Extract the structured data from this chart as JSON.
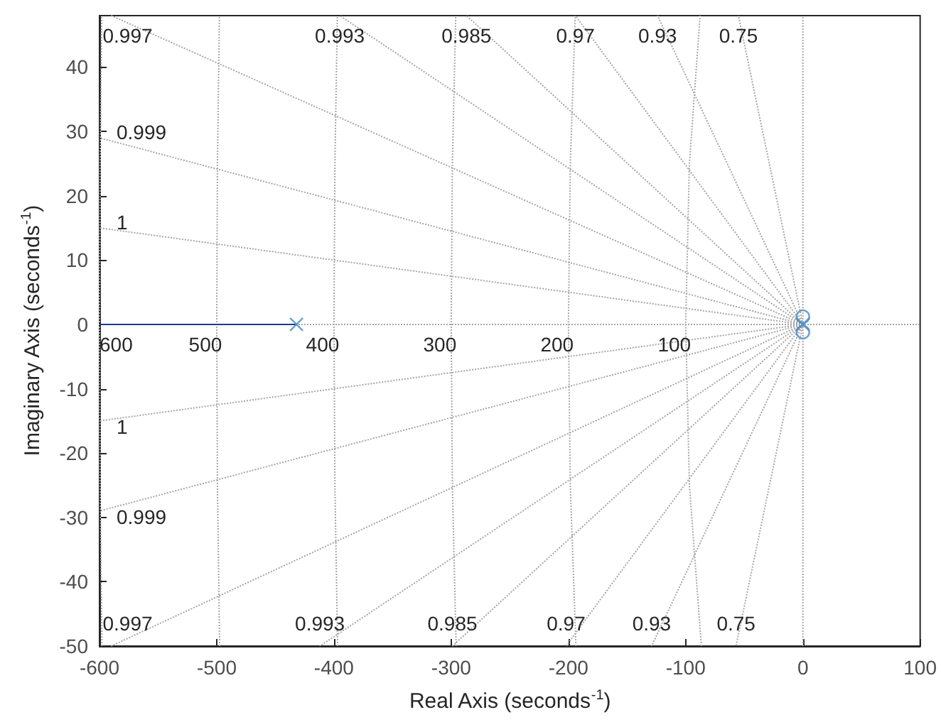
{
  "chart_data": {
    "type": "line",
    "xlabel": "Real Axis (seconds$^{-1}$)",
    "ylabel": "Imaginary Axis (seconds$^{-1}$)",
    "xlim": [
      -600,
      100
    ],
    "xticks": [
      -600,
      -500,
      -400,
      -300,
      -200,
      -100,
      0,
      100
    ],
    "ylim": [
      -50,
      48
    ],
    "yticks": [
      -50,
      -40,
      -30,
      -20,
      -10,
      0,
      10,
      20,
      30,
      40
    ],
    "series": [
      {
        "color": "#a6a6a6",
        "line_style": "dotted",
        "marker": "none",
        "x": [
          -600,
          100
        ],
        "values": [
          0,
          0
        ]
      },
      {
        "color": "#a6a6a6",
        "line_style": "dotted",
        "marker": "none",
        "x": [
          0,
          0
        ],
        "values": [
          -50,
          48
        ]
      },
      {
        "color": "#a6a6a6",
        "line_style": "dotted",
        "marker": "none",
        "x": [
          0,
          -590
        ],
        "values": [
          0,
          48
        ]
      },
      {
        "color": "#a6a6a6",
        "line_style": "dotted",
        "marker": "none",
        "x": [
          0,
          -395
        ],
        "values": [
          0,
          48
        ]
      },
      {
        "color": "#a6a6a6",
        "line_style": "dotted",
        "marker": "none",
        "x": [
          0,
          -287
        ],
        "values": [
          0,
          48
        ]
      },
      {
        "color": "#a6a6a6",
        "line_style": "dotted",
        "marker": "none",
        "x": [
          0,
          -194
        ],
        "values": [
          0,
          48
        ]
      },
      {
        "color": "#a6a6a6",
        "line_style": "dotted",
        "marker": "none",
        "x": [
          0,
          -124
        ],
        "values": [
          0,
          48
        ]
      },
      {
        "color": "#a6a6a6",
        "line_style": "dotted",
        "marker": "none",
        "x": [
          0,
          -55
        ],
        "values": [
          0,
          48
        ]
      },
      {
        "color": "#a6a6a6",
        "line_style": "dotted",
        "marker": "none",
        "x": [
          0,
          -600
        ],
        "values": [
          0,
          29
        ]
      },
      {
        "color": "#a6a6a6",
        "line_style": "dotted",
        "marker": "none",
        "x": [
          0,
          -600
        ],
        "values": [
          0,
          15
        ]
      },
      {
        "color": "#a6a6a6",
        "line_style": "dotted",
        "marker": "none",
        "x": [
          0,
          -590
        ],
        "values": [
          0,
          -50
        ]
      },
      {
        "color": "#a6a6a6",
        "line_style": "dotted",
        "marker": "none",
        "x": [
          0,
          -412
        ],
        "values": [
          0,
          -50
        ]
      },
      {
        "color": "#a6a6a6",
        "line_style": "dotted",
        "marker": "none",
        "x": [
          0,
          -299
        ],
        "values": [
          0,
          -50
        ]
      },
      {
        "color": "#a6a6a6",
        "line_style": "dotted",
        "marker": "none",
        "x": [
          0,
          -202
        ],
        "values": [
          0,
          -50
        ]
      },
      {
        "color": "#a6a6a6",
        "line_style": "dotted",
        "marker": "none",
        "x": [
          0,
          -129
        ],
        "values": [
          0,
          -50
        ]
      },
      {
        "color": "#a6a6a6",
        "line_style": "dotted",
        "marker": "none",
        "x": [
          0,
          -57
        ],
        "values": [
          0,
          -50
        ]
      },
      {
        "color": "#a6a6a6",
        "line_style": "dotted",
        "marker": "none",
        "x": [
          0,
          -600
        ],
        "values": [
          0,
          -29
        ]
      },
      {
        "color": "#a6a6a6",
        "line_style": "dotted",
        "marker": "none",
        "x": [
          0,
          -600
        ],
        "values": [
          0,
          -15
        ]
      },
      {
        "color": "#a6a6a6",
        "line_style": "dotted",
        "marker": "none",
        "x": [
          -86.6,
          -96.8,
          -100,
          -96.8,
          -87.7
        ],
        "values": [
          -50,
          -25,
          0,
          25,
          48
        ]
      },
      {
        "color": "#a6a6a6",
        "line_style": "dotted",
        "marker": "none",
        "x": [
          -193.6,
          -198.4,
          -200,
          -198.4,
          -194.2
        ],
        "values": [
          -50,
          -25,
          0,
          25,
          48
        ]
      },
      {
        "color": "#a6a6a6",
        "line_style": "dotted",
        "marker": "none",
        "x": [
          -295.8,
          -299,
          -300,
          -299,
          -296.1
        ],
        "values": [
          -50,
          -25,
          0,
          25,
          48
        ]
      },
      {
        "color": "#a6a6a6",
        "line_style": "dotted",
        "marker": "none",
        "x": [
          -396.9,
          -399.2,
          -400,
          -399.2,
          -397.1
        ],
        "values": [
          -50,
          -25,
          0,
          25,
          48
        ]
      },
      {
        "color": "#a6a6a6",
        "line_style": "dotted",
        "marker": "none",
        "x": [
          -497.5,
          -499.4,
          -500,
          -499.4,
          -497.7
        ],
        "values": [
          -50,
          -25,
          0,
          25,
          48
        ]
      },
      {
        "color": "#a6a6a6",
        "line_style": "dotted",
        "marker": "none",
        "x": [
          -597.9,
          -599.5,
          -600,
          -599.5,
          -598.1
        ],
        "values": [
          -50,
          -25,
          0,
          25,
          48
        ]
      },
      {
        "color": "#1f3a93",
        "line_style": "solid",
        "marker": "none",
        "x": [
          -600,
          -432
        ],
        "values": [
          0,
          0
        ]
      },
      {
        "type": "scatter",
        "color": "#4a8cc4",
        "marker": "cross",
        "x": [
          -432,
          0
        ],
        "values": [
          0,
          0
        ]
      },
      {
        "type": "scatter",
        "color": "#4a8cc4",
        "marker": "circle",
        "x": [
          0,
          0
        ],
        "values": [
          1.2,
          -1.2
        ]
      }
    ],
    "annotations": [
      {
        "text": "0.997",
        "x": -590,
        "y": 48
      },
      {
        "text": "0.993",
        "x": -395,
        "y": 48
      },
      {
        "text": "0.985",
        "x": -287,
        "y": 48
      },
      {
        "text": "0.97",
        "x": -194,
        "y": 48
      },
      {
        "text": "0.93",
        "x": -124,
        "y": 48
      },
      {
        "text": "0.75",
        "x": -55,
        "y": 48
      },
      {
        "text": "0.999",
        "x": -600,
        "y": 29
      },
      {
        "text": "1",
        "x": -600,
        "y": 15
      },
      {
        "text": "1",
        "x": -600,
        "y": -15
      },
      {
        "text": "0.999",
        "x": -600,
        "y": -29
      },
      {
        "text": "0.997",
        "x": -590,
        "y": -50
      },
      {
        "text": "0.993",
        "x": -412,
        "y": -50
      },
      {
        "text": "0.985",
        "x": -299,
        "y": -50
      },
      {
        "text": "0.97",
        "x": -202,
        "y": -50
      },
      {
        "text": "0.93",
        "x": -129,
        "y": -50
      },
      {
        "text": "0.75",
        "x": -57,
        "y": -50
      },
      {
        "text": "600",
        "x": -600,
        "y": 0
      },
      {
        "text": "500",
        "x": -500,
        "y": 0
      },
      {
        "text": "400",
        "x": -400,
        "y": 0
      },
      {
        "text": "300",
        "x": -300,
        "y": 0
      },
      {
        "text": "200",
        "x": -200,
        "y": 0
      },
      {
        "text": "100",
        "x": -100,
        "y": 0
      }
    ]
  }
}
